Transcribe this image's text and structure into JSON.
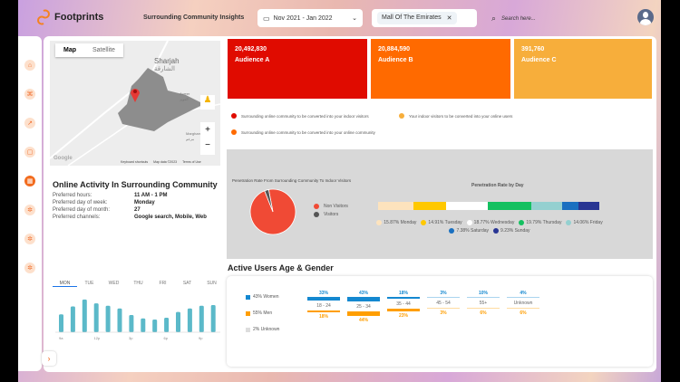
{
  "header": {
    "brand": "Footprints",
    "subtitle": "Surrounding Community Insights",
    "date_range": "Nov 2021 - Jan 2022",
    "location_chip": "Mall Of The Emirates",
    "search_placeholder": "Search here..."
  },
  "sidebar": {
    "icons": [
      "home-icon",
      "grid-icon",
      "chart-icon",
      "square-icon",
      "dashboard-icon",
      "settings-icon",
      "settings-icon",
      "settings-icon"
    ],
    "active_index": 4
  },
  "map": {
    "tabs": [
      "Map",
      "Satellite"
    ],
    "active_tab": "Map",
    "labels": {
      "city": "Sharjah",
      "city_ar": "الشارقة",
      "area": "Aweer",
      "area_ar": "العوير",
      "area2": "Margham",
      "area2_ar": "مرغم",
      "shortcuts": "Keyboard shortcuts",
      "data": "Map data ©2023",
      "terms": "Terms of Use",
      "zoom_in": "+",
      "zoom_out": "−",
      "google": "Google"
    }
  },
  "audiences": [
    {
      "value": "20,492,830",
      "label": "Audience A",
      "color": "#e00b00"
    },
    {
      "value": "20,884,590",
      "label": "Audience B",
      "color": "#ff6a00"
    },
    {
      "value": "391,760",
      "label": "Audience C",
      "color": "#f7ae3b"
    }
  ],
  "audience_legend": [
    {
      "text": "Surrounding online community to be converted into your indoor visitors",
      "color": "#e00b00"
    },
    {
      "text": "Your indoor visitors to be converted into your online users",
      "color": "#f7ae3b"
    },
    {
      "text": "Surrounding online community to be converted into your online community",
      "color": "#ff6a00"
    }
  ],
  "online_activity": {
    "title": "Online Activity In Surrounding Community",
    "rows": [
      {
        "label": "Preferred hours:",
        "value": "11 AM - 1 PM"
      },
      {
        "label": "Preferred day of week:",
        "value": "Monday"
      },
      {
        "label": "Preferred day of month:",
        "value": "27"
      },
      {
        "label": "Preferred channels:",
        "value": "Google search, Mobile, Web"
      }
    ],
    "day_tabs": [
      "MON",
      "TUE",
      "WED",
      "THU",
      "FRI",
      "SAT",
      "SUN"
    ],
    "active_day": "MON",
    "hour_labels": [
      "9a",
      "12p",
      "3p",
      "6p",
      "9p"
    ],
    "bar_values": [
      52,
      75,
      95,
      84,
      77,
      69,
      50,
      40,
      37,
      42,
      59,
      69,
      77,
      79
    ]
  },
  "chart_data": [
    {
      "type": "pie",
      "title": "Penetration Rate From Surrounding Community To Indoor Visitors",
      "slices": [
        {
          "name": "Non Visitors",
          "value": 97,
          "color": "#f04a35"
        },
        {
          "name": "Visitors",
          "value": 3,
          "color": "#555555"
        }
      ]
    },
    {
      "type": "bar",
      "title": "Penetration Rate by Day",
      "stacked": true,
      "series": [
        {
          "name": "Monday",
          "value": 15.87,
          "label": "15.87% Monday",
          "color": "#fde3bd"
        },
        {
          "name": "Tuesday",
          "value": 14.91,
          "label": "14.91% Tuesday",
          "color": "#ffc800"
        },
        {
          "name": "Wednesday",
          "value": 18.77,
          "label": "18.77% Wednesday",
          "color": "#ffffff"
        },
        {
          "name": "Thursday",
          "value": 19.79,
          "label": "19.79% Thursday",
          "color": "#14c060"
        },
        {
          "name": "Friday",
          "value": 14.06,
          "label": "14.06% Friday",
          "color": "#94d0d0"
        },
        {
          "name": "Saturday",
          "value": 7.38,
          "label": "7.38% Saturday",
          "color": "#1a70c0"
        },
        {
          "name": "Sunday",
          "value": 9.23,
          "label": "9.23% Sunday",
          "color": "#283593"
        }
      ]
    }
  ],
  "age_gender": {
    "title": "Active Users Age & Gender",
    "legend": [
      {
        "text": "43% Women",
        "color": "#1488d0"
      },
      {
        "text": "55% Men",
        "color": "#ff9e00"
      },
      {
        "text": "2% Unknown",
        "color": "#dddddd"
      }
    ],
    "groups": [
      {
        "age": "18 - 24",
        "women": "33%",
        "men": "18%",
        "w": 33,
        "m": 18
      },
      {
        "age": "25 - 34",
        "women": "43%",
        "men": "44%",
        "w": 43,
        "m": 44
      },
      {
        "age": "35 - 44",
        "women": "18%",
        "men": "23%",
        "w": 18,
        "m": 23
      },
      {
        "age": "45 - 54",
        "women": "3%",
        "men": "3%",
        "w": 3,
        "m": 3
      },
      {
        "age": "55+",
        "women": "10%",
        "men": "6%",
        "w": 10,
        "m": 6
      },
      {
        "age": "Unknown",
        "women": "4%",
        "men": "6%",
        "w": 4,
        "m": 6
      }
    ]
  }
}
